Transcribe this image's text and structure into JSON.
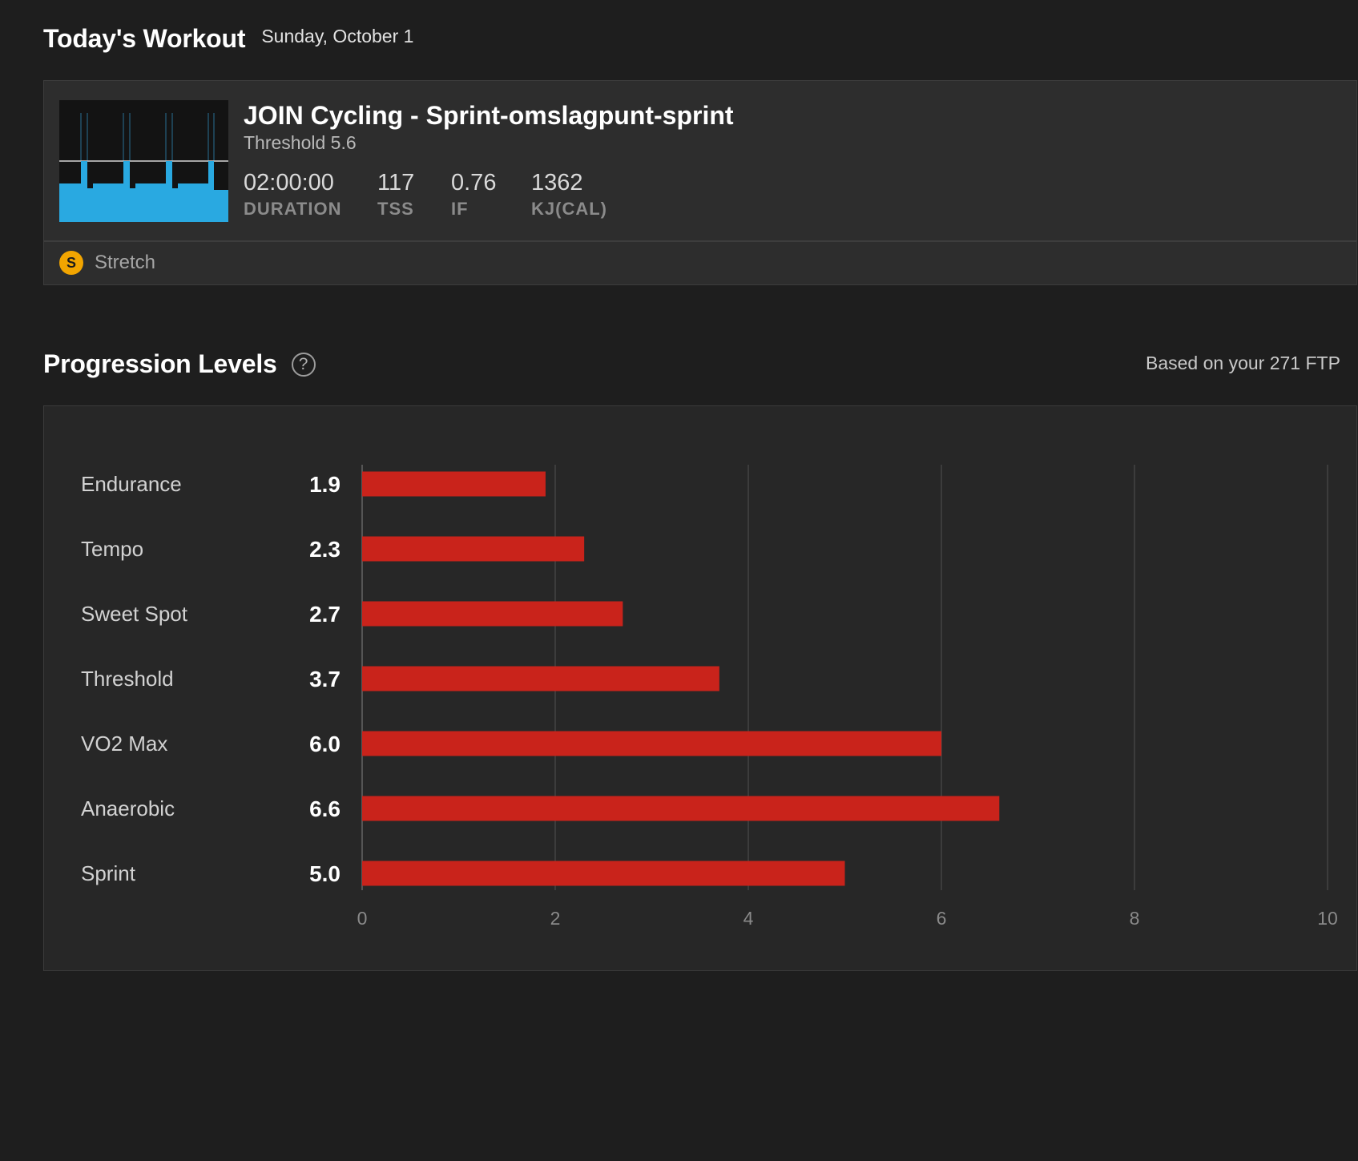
{
  "workout_section": {
    "title": "Today's Workout",
    "date": "Sunday, October 1"
  },
  "workout": {
    "name": "JOIN Cycling - Sprint-omslagpunt-sprint",
    "subtitle": "Threshold 5.6",
    "thumbnail_color": "#29a9e1",
    "stats": [
      {
        "value": "02:00:00",
        "label": "DURATION"
      },
      {
        "value": "117",
        "label": "TSS"
      },
      {
        "value": "0.76",
        "label": "IF"
      },
      {
        "value": "1362",
        "label": "KJ(CAL)"
      }
    ],
    "footer": {
      "badge": "S",
      "badge_color": "#f2a500",
      "label": "Stretch"
    }
  },
  "progression": {
    "title": "Progression Levels",
    "help_glyph": "?",
    "based_on": "Based on your 271 FTP"
  },
  "chart_data": {
    "type": "bar",
    "orientation": "horizontal",
    "categories": [
      "Endurance",
      "Tempo",
      "Sweet Spot",
      "Threshold",
      "VO2 Max",
      "Anaerobic",
      "Sprint"
    ],
    "values": [
      1.9,
      2.3,
      2.7,
      3.7,
      6.0,
      6.6,
      5.0
    ],
    "value_labels": [
      "1.9",
      "2.3",
      "2.7",
      "3.7",
      "6.0",
      "6.6",
      "5.0"
    ],
    "xlim": [
      0,
      10
    ],
    "xticks": [
      0,
      2,
      4,
      6,
      8,
      10
    ],
    "bar_color": "#c9231b",
    "grid": true,
    "title": "",
    "xlabel": "",
    "ylabel": ""
  }
}
